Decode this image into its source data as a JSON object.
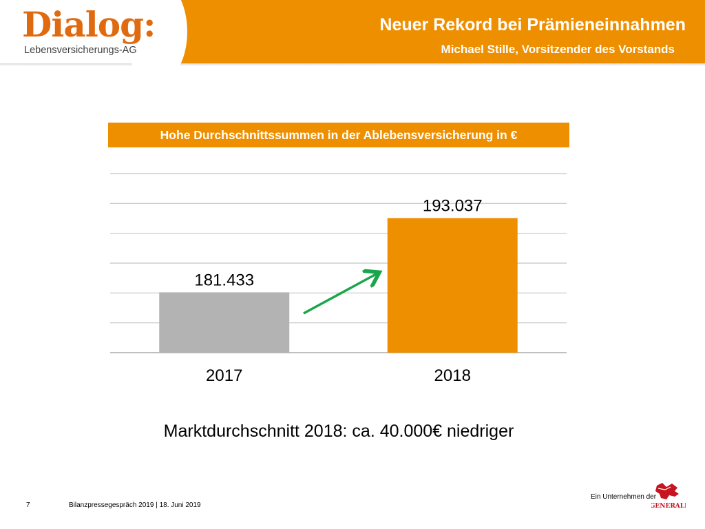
{
  "header": {
    "title": "Neuer Rekord bei Prämieneinnahmen",
    "subtitle": "Michael Stille, Vorsitzender des Vorstands",
    "logo_word": "Dialog:",
    "logo_sub": "Lebensversicherungs-AG"
  },
  "chart_title": "Hohe Durchschnittssummen in der Ablebensversicherung in €",
  "chart_data": {
    "type": "bar",
    "title": "Hohe Durchschnittssummen in der Ablebensversicherung in €",
    "categories": [
      "2017",
      "2018"
    ],
    "values": [
      181433,
      193037
    ],
    "value_labels": [
      "181.433",
      "193.037"
    ],
    "bar_colors": [
      "#b3b3b3",
      "#ee8f00"
    ],
    "ylim": [
      172000,
      200000
    ],
    "grid": true,
    "annotation": "green upward arrow from 2017 to 2018",
    "xlabel": "",
    "ylabel": ""
  },
  "note": "Marktdurchschnitt 2018: ca. 40.000€ niedriger",
  "footer": {
    "page_number": "7",
    "text": "Bilanzpressegespräch 2019  |  18. Juni 2019",
    "group": "Ein Unternehmen der",
    "group_logo": "GENERALI"
  },
  "colors": {
    "accent": "#ee8f00",
    "logo": "#e06a10",
    "arrow": "#19a64a",
    "bar_2017": "#b3b3b3"
  }
}
